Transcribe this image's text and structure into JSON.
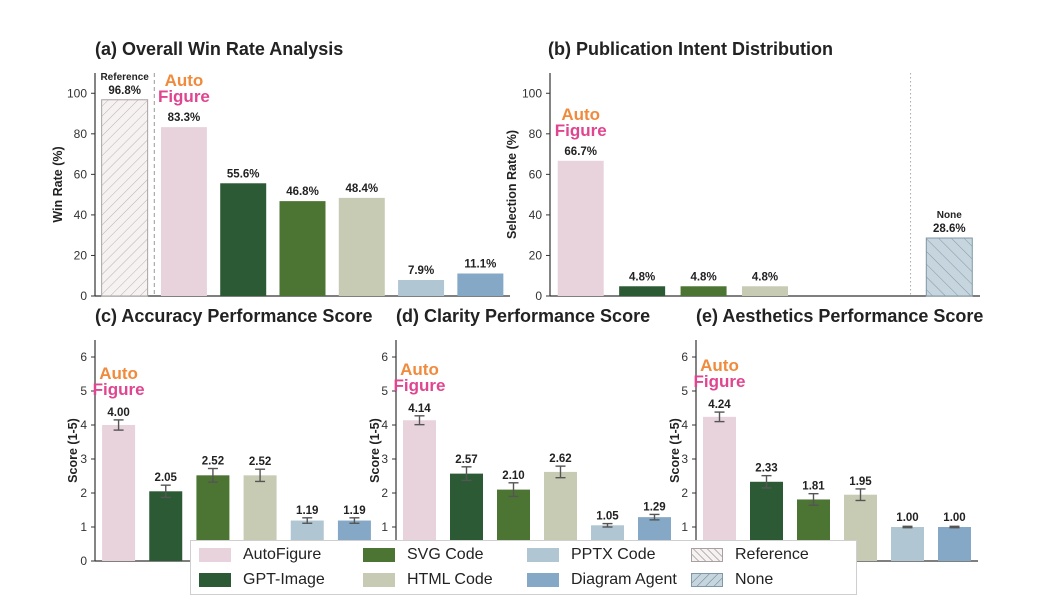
{
  "colors": {
    "AutoFigure": "#e8d3dc",
    "GPT-Image": "#2c5a35",
    "SVG Code": "#4c7534",
    "HTML Code": "#c8cbb4",
    "PPTX Code": "#b0c6d3",
    "Diagram Agent": "#84a8c6",
    "Reference": "#f6f2f2",
    "None": "#c6d5de",
    "logo_auto": "#f08a3c",
    "logo_figure": "#e0458f"
  },
  "logo": {
    "line1": "Auto",
    "line2": "Figure"
  },
  "chart_data": [
    {
      "id": "a",
      "type": "bar",
      "title": "(a) Overall Win Rate Analysis",
      "ylabel": "Win Rate (%)",
      "ylim": [
        0,
        110
      ],
      "yticks": [
        0,
        20,
        40,
        60,
        80,
        100
      ],
      "categories": [
        "Reference",
        "AutoFigure",
        "GPT-Image",
        "SVG Code",
        "HTML Code",
        "PPTX Code",
        "Diagram Agent"
      ],
      "values": [
        96.8,
        83.3,
        55.6,
        46.8,
        48.4,
        7.9,
        11.1
      ],
      "labels": [
        "96.8%",
        "83.3%",
        "55.6%",
        "46.8%",
        "48.4%",
        "7.9%",
        "11.1%"
      ],
      "annotation": "Reference",
      "divider_after": "Reference"
    },
    {
      "id": "b",
      "type": "bar",
      "title": "(b) Publication Intent Distribution",
      "ylabel": "Selection Rate (%)",
      "ylim": [
        0,
        110
      ],
      "yticks": [
        0,
        20,
        40,
        60,
        80,
        100
      ],
      "categories": [
        "AutoFigure",
        "GPT-Image",
        "SVG Code",
        "HTML Code",
        "PPTX Code",
        "Diagram Agent",
        "None"
      ],
      "values": [
        66.7,
        4.8,
        4.8,
        4.8,
        0,
        0,
        28.6
      ],
      "labels": [
        "66.7%",
        "4.8%",
        "4.8%",
        "4.8%",
        "",
        "",
        "28.6%"
      ],
      "annotation": "None",
      "divider_before": "None"
    },
    {
      "id": "c",
      "type": "bar",
      "title": "(c) Accuracy Performance Score",
      "ylabel": "Score (1-5)",
      "ylim": [
        0,
        6.5
      ],
      "yticks": [
        0,
        1,
        2,
        3,
        4,
        5,
        6
      ],
      "categories": [
        "AutoFigure",
        "GPT-Image",
        "SVG Code",
        "HTML Code",
        "PPTX Code",
        "Diagram Agent"
      ],
      "values": [
        4.0,
        2.05,
        2.52,
        2.52,
        1.19,
        1.19
      ],
      "errors": [
        0.15,
        0.18,
        0.2,
        0.18,
        0.08,
        0.08
      ],
      "labels": [
        "4.00",
        "2.05",
        "2.52",
        "2.52",
        "1.19",
        "1.19"
      ]
    },
    {
      "id": "d",
      "type": "bar",
      "title": "(d) Clarity Performance Score",
      "ylabel": "Score (1-5)",
      "ylim": [
        0,
        6.5
      ],
      "yticks": [
        0,
        1,
        2,
        3,
        4,
        5,
        6
      ],
      "categories": [
        "AutoFigure",
        "GPT-Image",
        "SVG Code",
        "HTML Code",
        "PPTX Code",
        "Diagram Agent"
      ],
      "values": [
        4.14,
        2.57,
        2.1,
        2.62,
        1.05,
        1.29
      ],
      "errors": [
        0.13,
        0.2,
        0.2,
        0.17,
        0.05,
        0.08
      ],
      "labels": [
        "4.14",
        "2.57",
        "2.10",
        "2.62",
        "1.05",
        "1.29"
      ]
    },
    {
      "id": "e",
      "type": "bar",
      "title": "(e) Aesthetics Performance Score",
      "ylabel": "Score (1-5)",
      "ylim": [
        0,
        6.5
      ],
      "yticks": [
        0,
        1,
        2,
        3,
        4,
        5,
        6
      ],
      "categories": [
        "AutoFigure",
        "GPT-Image",
        "SVG Code",
        "HTML Code",
        "PPTX Code",
        "Diagram Agent"
      ],
      "values": [
        4.24,
        2.33,
        1.81,
        1.95,
        1.0,
        1.0
      ],
      "errors": [
        0.14,
        0.18,
        0.17,
        0.17,
        0.02,
        0.02
      ],
      "labels": [
        "4.24",
        "2.33",
        "1.81",
        "1.95",
        "1.00",
        "1.00"
      ]
    }
  ],
  "legend": {
    "placement": "bottom-center",
    "items": [
      "AutoFigure",
      "SVG Code",
      "PPTX Code",
      "Reference",
      "GPT-Image",
      "HTML Code",
      "Diagram Agent",
      "None"
    ]
  }
}
